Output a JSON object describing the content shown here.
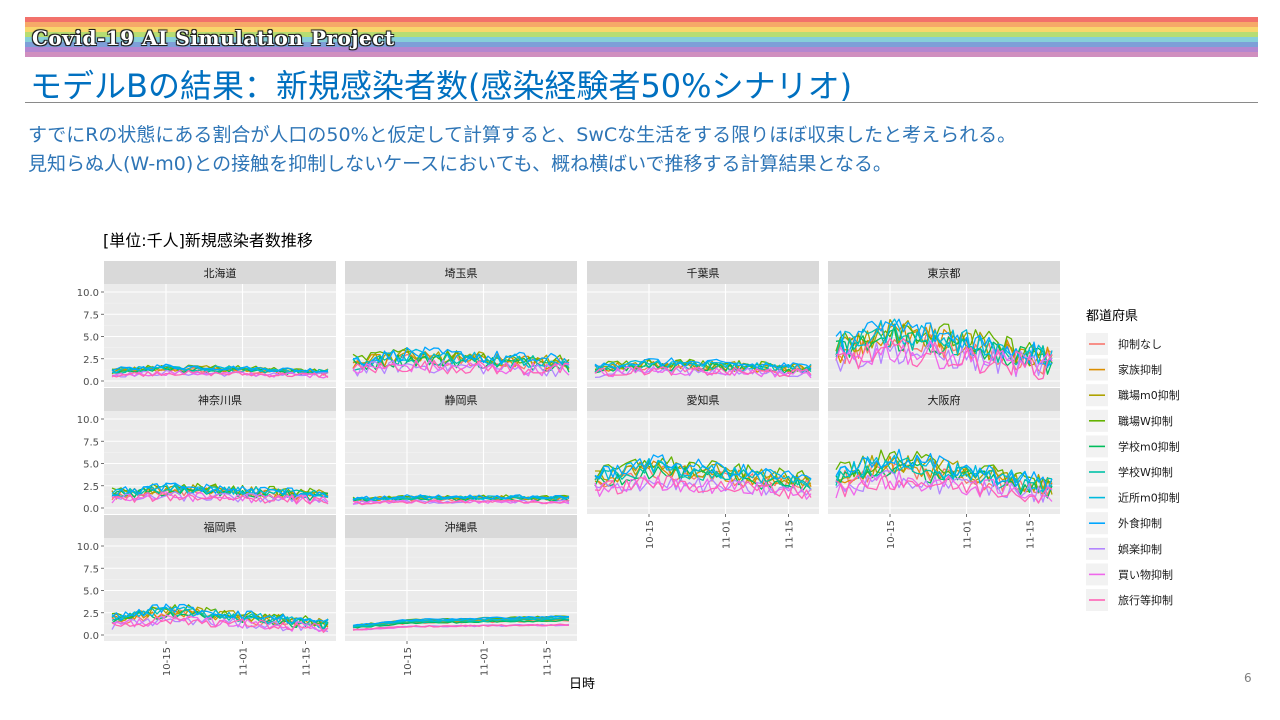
{
  "header": {
    "banner": "Covid-19 AI Simulation Project",
    "banner_colors": [
      "#f2716b",
      "#f6a968",
      "#f8d66c",
      "#b6dd73",
      "#86cfd9",
      "#7e9fd8",
      "#b487d0",
      "#d08fbf"
    ],
    "title": "モデルBの結果：新規感染者数(感染経験者50%シナリオ)"
  },
  "description": {
    "line1": "すでにRの状態にある割合が人口の50%と仮定して計算すると、SwCな生活をする限りほぼ収束したと考えられる。",
    "line2": "見知らぬ人(W-m0)との接触を抑制しないケースにおいても、概ね横ばいで推移する計算結果となる。"
  },
  "page_number": "6",
  "chart_data": {
    "type": "line",
    "title": "[単位:千人]新規感染者数推移",
    "xlabel": "日時",
    "ylabel": "",
    "x_range": [
      "10-03",
      "11-20"
    ],
    "x_ticks": [
      "10-15",
      "11-01",
      "11-15"
    ],
    "ylim": [
      0,
      10
    ],
    "y_ticks": [
      "0.0",
      "2.5",
      "5.0",
      "7.5",
      "10.0"
    ],
    "grid": true,
    "legend_title": "都道府県",
    "legend_position": "right",
    "series": [
      {
        "name": "抑制なし",
        "color": "#F8766D"
      },
      {
        "name": "家族抑制",
        "color": "#DB8E00"
      },
      {
        "name": "職場m0抑制",
        "color": "#AEA200"
      },
      {
        "name": "職場W抑制",
        "color": "#64B200"
      },
      {
        "name": "学校m0抑制",
        "color": "#00BD5C"
      },
      {
        "name": "学校W抑制",
        "color": "#00C1A7"
      },
      {
        "name": "近所m0抑制",
        "color": "#00BADE"
      },
      {
        "name": "外食抑制",
        "color": "#00A6FF"
      },
      {
        "name": "娯楽抑制",
        "color": "#B385FF"
      },
      {
        "name": "買い物抑制",
        "color": "#EF67EB"
      },
      {
        "name": "旅行等抑制",
        "color": "#FF63B6"
      }
    ],
    "panels": [
      {
        "name": "北海道",
        "base": 1.4,
        "amp": 0.35,
        "peak": 1.1,
        "end": 0.75
      },
      {
        "name": "埼玉県",
        "base": 2.6,
        "amp": 0.5,
        "peak": 1.1,
        "end": 0.8
      },
      {
        "name": "千葉県",
        "base": 1.9,
        "amp": 0.45,
        "peak": 1.05,
        "end": 0.75
      },
      {
        "name": "東京都",
        "base": 4.6,
        "amp": 0.55,
        "peak": 1.25,
        "end": 0.55
      },
      {
        "name": "神奈川県",
        "base": 2.0,
        "amp": 0.45,
        "peak": 1.1,
        "end": 0.75
      },
      {
        "name": "静岡県",
        "base": 1.2,
        "amp": 0.3,
        "peak": 1.0,
        "end": 0.95
      },
      {
        "name": "愛知県",
        "base": 4.2,
        "amp": 0.35,
        "peak": 1.15,
        "end": 0.7
      },
      {
        "name": "大阪府",
        "base": 4.6,
        "amp": 0.4,
        "peak": 1.15,
        "end": 0.55
      },
      {
        "name": "福岡県",
        "base": 2.3,
        "amp": 0.4,
        "peak": 1.25,
        "end": 0.55
      },
      {
        "name": "沖縄県",
        "base": 1.2,
        "amp": 0.12,
        "peak": 1.3,
        "end": 1.6
      }
    ]
  }
}
